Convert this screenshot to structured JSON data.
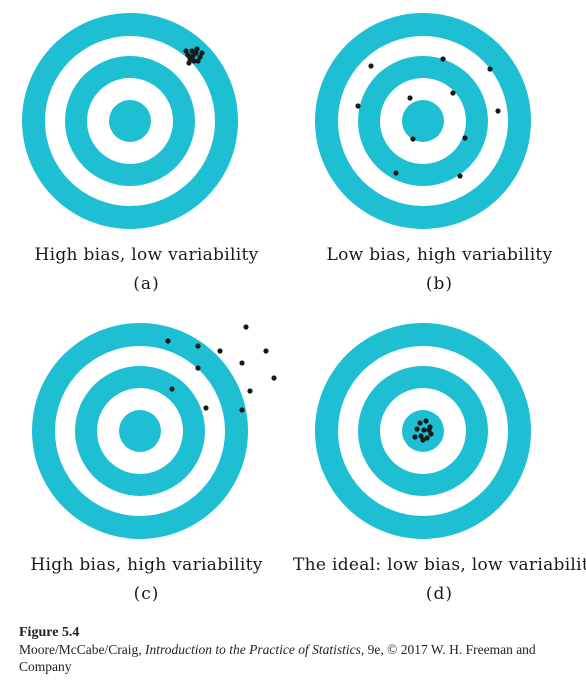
{
  "colors": {
    "ring": "#1ebfd2",
    "gap": "#ffffff",
    "dot": "#1a1a1a"
  },
  "panels": [
    {
      "id": "a",
      "caption": "High bias, low variability",
      "letter": "(a)",
      "shots": [
        [
          58,
          -66
        ],
        [
          62,
          -70
        ],
        [
          66,
          -68
        ],
        [
          70,
          -64
        ],
        [
          60,
          -62
        ],
        [
          64,
          -60
        ],
        [
          68,
          -60
        ],
        [
          72,
          -68
        ],
        [
          56,
          -70
        ],
        [
          63,
          -65
        ],
        [
          67,
          -72
        ],
        [
          59,
          -58
        ]
      ]
    },
    {
      "id": "b",
      "caption": "Low bias, high variability",
      "letter": "(b)",
      "shots": [
        [
          -52,
          -55
        ],
        [
          20,
          -62
        ],
        [
          67,
          -52
        ],
        [
          -65,
          -15
        ],
        [
          -13,
          -23
        ],
        [
          30,
          -28
        ],
        [
          75,
          -10
        ],
        [
          -10,
          18
        ],
        [
          42,
          17
        ],
        [
          -27,
          52
        ],
        [
          37,
          55
        ]
      ]
    },
    {
      "id": "c",
      "caption": "High bias, high variability",
      "letter": "(c)",
      "shots": [
        [
          28,
          -90
        ],
        [
          58,
          -85
        ],
        [
          106,
          -104
        ],
        [
          80,
          -80
        ],
        [
          126,
          -80
        ],
        [
          102,
          -68
        ],
        [
          58,
          -63
        ],
        [
          134,
          -53
        ],
        [
          32,
          -42
        ],
        [
          110,
          -40
        ],
        [
          66,
          -23
        ],
        [
          102,
          -21
        ]
      ]
    },
    {
      "id": "d",
      "caption": "The ideal: low bias, low variability",
      "letter": "(d)",
      "shots": [
        [
          -3,
          -8
        ],
        [
          3,
          -10
        ],
        [
          7,
          -4
        ],
        [
          -6,
          -2
        ],
        [
          1,
          -1
        ],
        [
          8,
          3
        ],
        [
          -2,
          5
        ],
        [
          4,
          7
        ],
        [
          -8,
          6
        ],
        [
          0,
          9
        ],
        [
          6,
          -1
        ]
      ]
    }
  ],
  "footer": {
    "title": "Figure 5.4",
    "credit_authors": "Moore/McCabe/Craig, ",
    "credit_book": "Introduction to the Practice of Statistics",
    "credit_rest": ", 9e, © 2017 W. H. Freeman and Company"
  }
}
